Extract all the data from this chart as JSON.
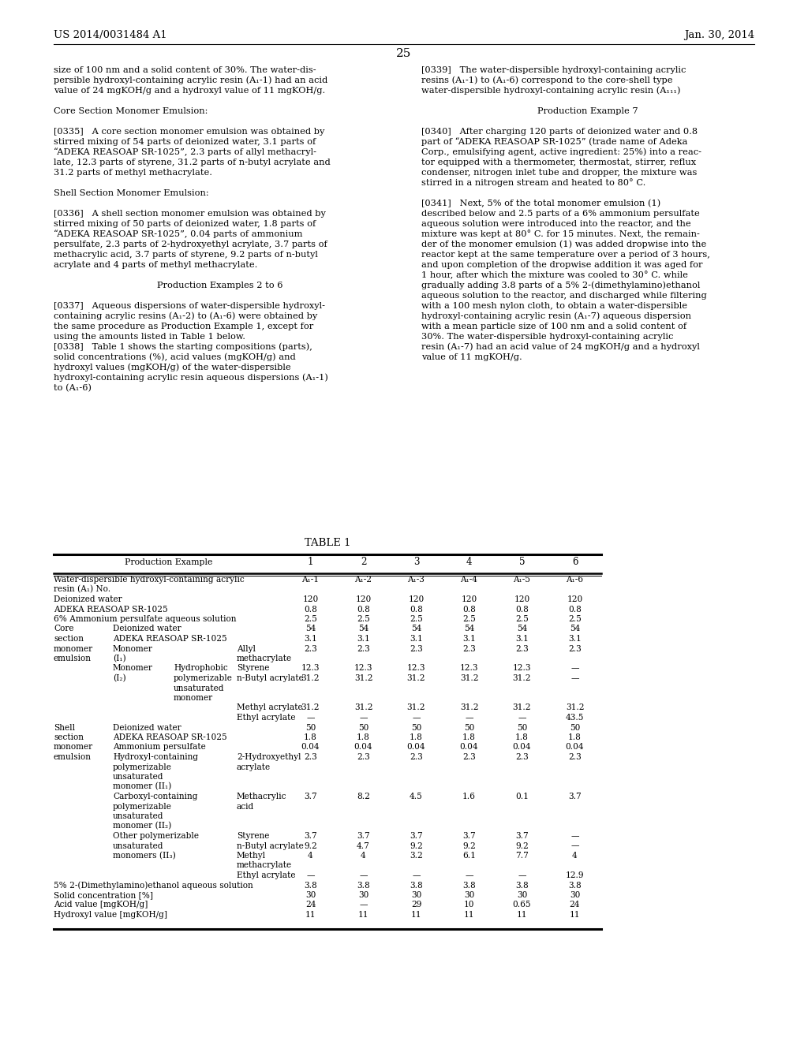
{
  "page_header_left": "US 2014/0031484 A1",
  "page_header_right": "Jan. 30, 2014",
  "page_number": "25",
  "background_color": "#ffffff",
  "text_color": "#000000"
}
